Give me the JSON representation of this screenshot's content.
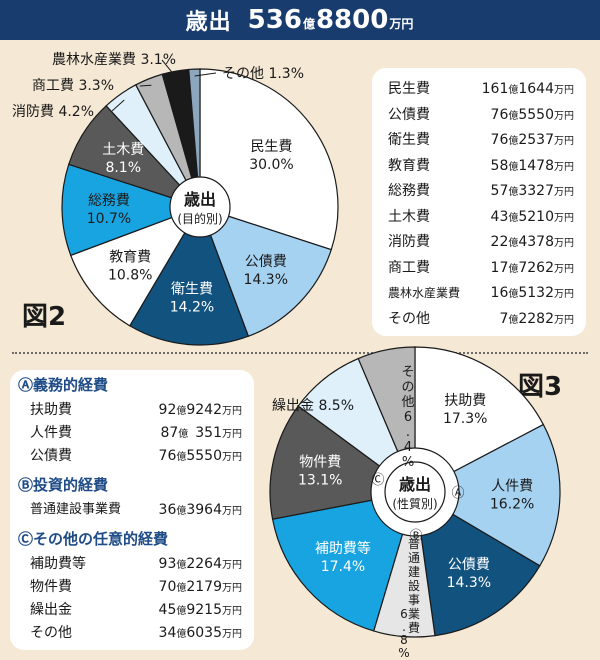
{
  "header": {
    "title": "歳出",
    "total_main": "536",
    "unit_oku": "億",
    "total_sub": "8800",
    "unit_manen": "万円"
  },
  "figure2": {
    "label": "図2",
    "center_line1": "歳出",
    "center_line2": "(目的別)"
  },
  "figure3": {
    "label": "図3",
    "center_line1": "歳出",
    "center_line2": "(性質別)"
  },
  "expenditure_table": [
    {
      "name": "民生費",
      "oku": "161",
      "man": "1644"
    },
    {
      "name": "公債費",
      "oku": "76",
      "man": "5550"
    },
    {
      "name": "衛生費",
      "oku": "76",
      "man": "2537"
    },
    {
      "name": "教育費",
      "oku": "58",
      "man": "1478"
    },
    {
      "name": "総務費",
      "oku": "57",
      "man": "3327"
    },
    {
      "name": "土木費",
      "oku": "43",
      "man": "5210"
    },
    {
      "name": "消防費",
      "oku": "22",
      "man": "4378"
    },
    {
      "name": "商工費",
      "oku": "17",
      "man": "7262"
    },
    {
      "name": "農林水産業費",
      "oku": "16",
      "man": "5132"
    },
    {
      "name": "その他",
      "oku": "7",
      "man": "2282"
    }
  ],
  "categories": {
    "a": {
      "title": "Ⓐ義務的経費",
      "items": [
        {
          "name": "扶助費",
          "oku": "92",
          "man": "9242"
        },
        {
          "name": "人件費",
          "oku": "87",
          "man": "351"
        },
        {
          "name": "公債費",
          "oku": "76",
          "man": "5550"
        }
      ]
    },
    "b": {
      "title": "Ⓑ投資的経費",
      "items": [
        {
          "name": "普通建設事業費",
          "oku": "36",
          "man": "3964"
        }
      ]
    },
    "c": {
      "title": "Ⓒその他の任意的経費",
      "items": [
        {
          "name": "補助費等",
          "oku": "93",
          "man": "2264"
        },
        {
          "name": "物件費",
          "oku": "70",
          "man": "2179"
        },
        {
          "name": "繰出金",
          "oku": "45",
          "man": "9215"
        },
        {
          "name": "その他",
          "oku": "34",
          "man": "6035"
        }
      ]
    }
  },
  "chart_data": [
    {
      "type": "pie",
      "title": "歳出(目的別)",
      "categories": [
        "民生費",
        "公債費",
        "衛生費",
        "教育費",
        "総務費",
        "土木費",
        "消防費",
        "商工費",
        "農林水産業費",
        "その他"
      ],
      "values": [
        30.0,
        14.3,
        14.2,
        10.8,
        10.7,
        8.1,
        4.2,
        3.3,
        3.1,
        1.3
      ],
      "labels": [
        "30.0%",
        "14.3%",
        "14.2%",
        "10.8%",
        "10.7%",
        "8.1%",
        "4.2%",
        "3.3%",
        "3.1%",
        "1.3%"
      ],
      "colors": [
        "#ffffff",
        "#a6d2f2",
        "#11527f",
        "#ffffff",
        "#18a4e0",
        "#595959",
        "#dff0fb",
        "#b7b7b7",
        "#1a1a1a",
        "#8ca6bd"
      ]
    },
    {
      "type": "pie",
      "title": "歳出(性質別)",
      "categories": [
        "扶助費",
        "人件費",
        "公債費",
        "普通建設事業費",
        "補助費等",
        "物件費",
        "繰出金",
        "その他"
      ],
      "values": [
        17.3,
        16.2,
        14.3,
        6.8,
        17.4,
        13.1,
        8.5,
        6.4
      ],
      "labels": [
        "17.3%",
        "16.2%",
        "14.3%",
        "6.8%",
        "17.4%",
        "13.1%",
        "8.5%",
        "6.4%"
      ],
      "colors": [
        "#ffffff",
        "#a6d2f2",
        "#11527f",
        "#e6e6e6",
        "#18a4e0",
        "#595959",
        "#dff0fb",
        "#b7b7b7"
      ],
      "groups": [
        {
          "marker": "Ⓐ",
          "categories": [
            "扶助費",
            "人件費",
            "公債費"
          ]
        },
        {
          "marker": "Ⓑ",
          "categories": [
            "普通建設事業費"
          ]
        },
        {
          "marker": "Ⓒ",
          "categories": [
            "補助費等",
            "物件費",
            "繰出金",
            "その他"
          ]
        }
      ]
    }
  ]
}
